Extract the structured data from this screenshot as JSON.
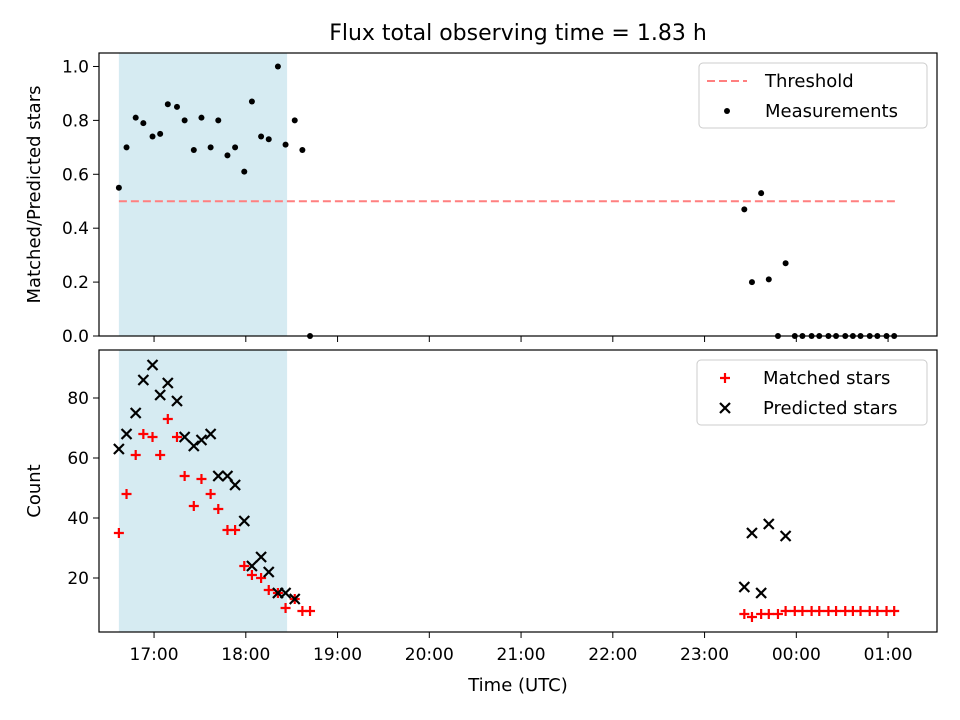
{
  "figure": {
    "title": "Flux total observing time = 1.83 h"
  },
  "chart_data": [
    {
      "type": "scatter",
      "panel": "top",
      "xlabel": "",
      "ylabel": "Matched/Predicted stars",
      "xlim": [
        "16:24",
        "25:32"
      ],
      "ylim": [
        0,
        1.05
      ],
      "yticks": [
        "0.0",
        "0.2",
        "0.4",
        "0.6",
        "0.8",
        "1.0"
      ],
      "grid": false,
      "legend_position": "upper right",
      "shaded_interval": [
        "16:37",
        "18:27"
      ],
      "series": [
        {
          "name": "Threshold",
          "kind": "line",
          "style": "dashed",
          "color": "#ff7f7f",
          "x": [
            "16:37",
            "25:05"
          ],
          "y": [
            0.5,
            0.5
          ]
        },
        {
          "name": "Measurements",
          "kind": "scatter",
          "marker": "dot",
          "color": "#000000",
          "x": [
            "16:37",
            "16:42",
            "16:48",
            "16:53",
            "16:59",
            "17:04",
            "17:09",
            "17:15",
            "17:20",
            "17:26",
            "17:31",
            "17:37",
            "17:42",
            "17:48",
            "17:53",
            "17:59",
            "18:04",
            "18:10",
            "18:15",
            "18:21",
            "18:26",
            "18:32",
            "18:37",
            "18:42",
            "23:26",
            "23:31",
            "23:37",
            "23:42",
            "23:48",
            "23:53",
            "23:59",
            "24:04",
            "24:10",
            "24:15",
            "24:21",
            "24:26",
            "24:32",
            "24:37",
            "24:42",
            "24:48",
            "24:53",
            "24:59",
            "25:04"
          ],
          "y": [
            0.55,
            0.7,
            0.81,
            0.79,
            0.74,
            0.75,
            0.86,
            0.85,
            0.8,
            0.69,
            0.81,
            0.7,
            0.8,
            0.67,
            0.7,
            0.61,
            0.87,
            0.74,
            0.73,
            1.0,
            0.71,
            0.8,
            0.69,
            0.0,
            0.47,
            0.2,
            0.53,
            0.21,
            0.0,
            0.27,
            0.0,
            0.0,
            0.0,
            0.0,
            0.0,
            0.0,
            0.0,
            0.0,
            0.0,
            0.0,
            0.0,
            0.0,
            0.0
          ]
        }
      ]
    },
    {
      "type": "scatter",
      "panel": "bottom",
      "xlabel": "Time (UTC)",
      "ylabel": "Count",
      "xlim": [
        "16:24",
        "25:32"
      ],
      "ylim": [
        2,
        96
      ],
      "xticks": [
        "17:00",
        "18:00",
        "19:00",
        "20:00",
        "21:00",
        "22:00",
        "23:00",
        "00:00",
        "01:00"
      ],
      "yticks": [
        "20",
        "40",
        "60",
        "80"
      ],
      "grid": false,
      "legend_position": "upper right",
      "shaded_interval": [
        "16:37",
        "18:27"
      ],
      "series": [
        {
          "name": "Matched stars",
          "kind": "scatter",
          "marker": "plus",
          "color": "#ff0000",
          "x": [
            "16:37",
            "16:42",
            "16:48",
            "16:53",
            "16:59",
            "17:04",
            "17:09",
            "17:15",
            "17:20",
            "17:26",
            "17:31",
            "17:37",
            "17:42",
            "17:48",
            "17:53",
            "17:59",
            "18:04",
            "18:10",
            "18:15",
            "18:21",
            "18:26",
            "18:32",
            "18:37",
            "18:42",
            "23:26",
            "23:31",
            "23:37",
            "23:42",
            "23:48",
            "23:53",
            "23:59",
            "24:04",
            "24:10",
            "24:15",
            "24:21",
            "24:26",
            "24:32",
            "24:37",
            "24:42",
            "24:48",
            "24:53",
            "24:59",
            "25:04"
          ],
          "y": [
            35,
            48,
            61,
            68,
            67,
            61,
            73,
            67,
            54,
            44,
            53,
            48,
            43,
            36,
            36,
            24,
            21,
            20,
            16,
            15,
            10,
            13,
            9,
            9,
            8,
            7,
            8,
            8,
            8,
            9,
            9,
            9,
            9,
            9,
            9,
            9,
            9,
            9,
            9,
            9,
            9,
            9,
            9
          ]
        },
        {
          "name": "Predicted stars",
          "kind": "scatter",
          "marker": "x",
          "color": "#000000",
          "x": [
            "16:37",
            "16:42",
            "16:48",
            "16:53",
            "16:59",
            "17:04",
            "17:09",
            "17:15",
            "17:20",
            "17:26",
            "17:31",
            "17:37",
            "17:42",
            "17:48",
            "17:53",
            "17:59",
            "18:04",
            "18:10",
            "18:15",
            "18:21",
            "18:26",
            "18:32",
            "23:26",
            "23:31",
            "23:37",
            "23:42",
            "23:53"
          ],
          "y": [
            63,
            68,
            75,
            86,
            91,
            81,
            85,
            79,
            67,
            64,
            66,
            68,
            54,
            54,
            51,
            39,
            24,
            27,
            22,
            15,
            15,
            13,
            17,
            35,
            15,
            38,
            34
          ]
        }
      ]
    }
  ]
}
